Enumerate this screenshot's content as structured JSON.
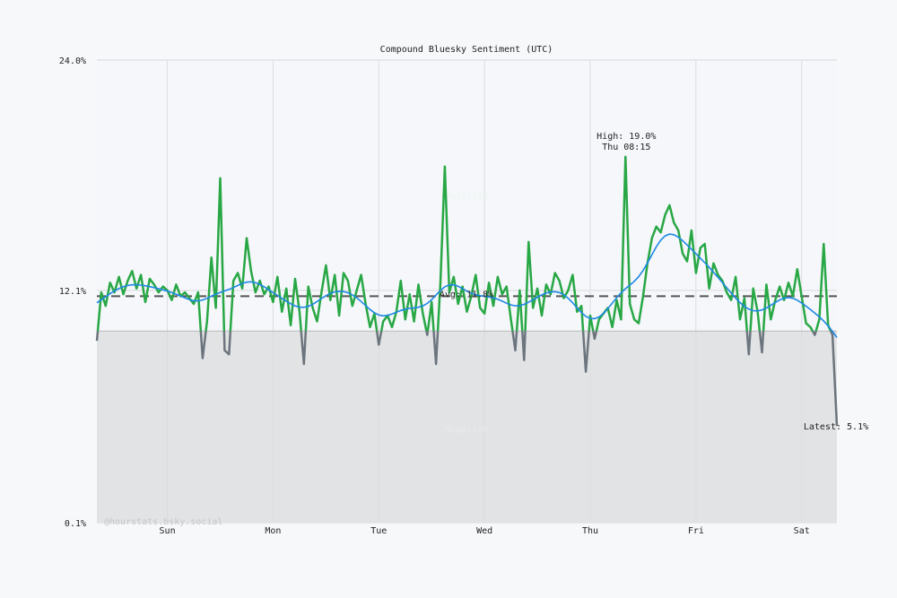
{
  "chart_data": {
    "type": "line",
    "title": "Compound Bluesky Sentiment (UTC)",
    "ylim": [
      0.1,
      24.0
    ],
    "y_ticks": [
      "24.0%",
      "12.1%",
      "0.1%"
    ],
    "y_tick_values": [
      24.0,
      12.1,
      0.1
    ],
    "x_ticks": [
      "Sun",
      "Mon",
      "Tue",
      "Wed",
      "Thu",
      "Fri",
      "Sat"
    ],
    "x_tick_hours": [
      16,
      40,
      64,
      88,
      112,
      136,
      160
    ],
    "x_unit": "hours since Sat 08:00 UTC",
    "grid": true,
    "threshold": 10.0,
    "average": 11.8,
    "average_label": "Avg: 11.8%",
    "high_label": "High: 19.0%",
    "high_time": "Thu 08:15",
    "latest_label": "Latest: 5.1%",
    "zone_labels": {
      "above": "Positive",
      "below": "Negative"
    },
    "watermark": "@hourstats.bsky.social",
    "colors": {
      "above": "#28a745",
      "below": "#6c757d",
      "smoothed": "#1e88e5",
      "negative_fill": "#e2e3e5",
      "average": "#555555"
    },
    "series": [
      {
        "values": [
          9.5,
          12.0,
          11.3,
          12.5,
          12.0,
          12.8,
          11.9,
          12.6,
          13.1,
          12.2,
          12.9,
          11.5,
          12.7,
          12.4,
          12.0,
          12.3,
          12.1,
          11.6,
          12.4,
          11.8,
          12.0,
          11.7,
          11.4,
          12.0,
          8.6,
          10.5,
          13.8,
          11.2,
          17.9,
          9.0,
          8.8,
          12.6,
          13.0,
          12.2,
          14.8,
          13.1,
          12.0,
          12.6,
          11.9,
          12.3,
          11.5,
          12.8,
          11.0,
          12.2,
          10.3,
          12.7,
          11.0,
          8.3,
          12.3,
          11.2,
          10.5,
          12.0,
          13.4,
          11.6,
          12.9,
          10.8,
          13.0,
          12.6,
          11.3,
          12.1,
          12.9,
          11.4,
          10.2,
          10.9,
          9.3,
          10.5,
          10.8,
          10.2,
          11.0,
          12.6,
          10.6,
          11.9,
          10.5,
          12.4,
          10.9,
          9.8,
          11.5,
          8.3,
          12.5,
          18.5,
          12.0,
          12.8,
          11.4,
          12.3,
          11.0,
          11.8,
          12.9,
          11.2,
          10.9,
          12.5,
          11.3,
          12.8,
          11.9,
          12.3,
          10.6,
          9.0,
          12.1,
          8.5,
          14.6,
          11.2,
          12.2,
          10.8,
          12.4,
          11.9,
          13.0,
          12.6,
          11.7,
          12.1,
          12.9,
          11.0,
          11.3,
          7.9,
          10.8,
          9.6,
          10.6,
          10.9,
          11.2,
          10.2,
          11.6,
          10.6,
          19.0,
          11.4,
          10.6,
          10.4,
          11.8,
          13.5,
          14.8,
          15.4,
          15.1,
          16.0,
          16.5,
          15.6,
          15.2,
          14.0,
          13.6,
          15.2,
          13.0,
          14.3,
          14.5,
          12.2,
          13.5,
          12.9,
          12.6,
          12.0,
          11.6,
          12.8,
          10.6,
          11.7,
          8.8,
          12.2,
          11.0,
          8.9,
          12.4,
          10.6,
          11.6,
          12.3,
          11.6,
          12.5,
          11.8,
          13.2,
          11.8,
          10.4,
          10.2,
          9.8,
          10.6,
          14.5,
          10.3,
          9.8,
          5.1
        ]
      }
    ]
  }
}
